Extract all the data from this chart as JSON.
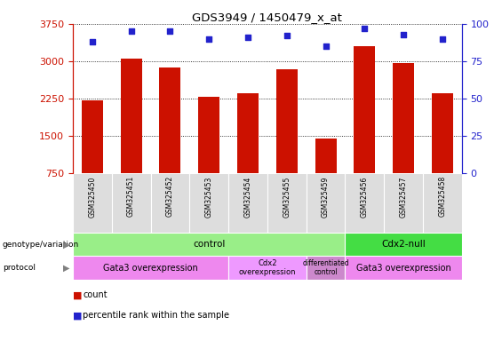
{
  "title": "GDS3949 / 1450479_x_at",
  "samples": [
    "GSM325450",
    "GSM325451",
    "GSM325452",
    "GSM325453",
    "GSM325454",
    "GSM325455",
    "GSM325459",
    "GSM325456",
    "GSM325457",
    "GSM325458"
  ],
  "counts": [
    2220,
    3060,
    2870,
    2290,
    2360,
    2840,
    1450,
    3310,
    2960,
    2360
  ],
  "percentile_ranks": [
    88,
    95,
    95,
    90,
    91,
    92,
    85,
    97,
    93,
    90
  ],
  "ylim_left": [
    750,
    3750
  ],
  "ylim_right": [
    0,
    100
  ],
  "yticks_left": [
    750,
    1500,
    2250,
    3000,
    3750
  ],
  "yticks_right": [
    0,
    25,
    50,
    75,
    100
  ],
  "bar_color": "#cc1100",
  "dot_color": "#2222cc",
  "bar_width": 0.55,
  "sample_box_color": "#dddddd",
  "genotype_control_color": "#99ee88",
  "genotype_cdx2null_color": "#44dd44",
  "genotype_control_label": "control",
  "genotype_cdx2null_label": "Cdx2-null",
  "genotype_control_range": [
    0,
    6
  ],
  "genotype_cdx2null_range": [
    7,
    9
  ],
  "protocol_boxes": [
    {
      "range": [
        0,
        3
      ],
      "label": "Gata3 overexpression",
      "color": "#ee88ee",
      "fontsize": 7
    },
    {
      "range": [
        4,
        5
      ],
      "label": "Cdx2\noverexpression",
      "color": "#ee99ff",
      "fontsize": 6
    },
    {
      "range": [
        6,
        6
      ],
      "label": "differentiated\ncontrol",
      "color": "#cc88cc",
      "fontsize": 5.5
    },
    {
      "range": [
        7,
        9
      ],
      "label": "Gata3 overexpression",
      "color": "#ee88ee",
      "fontsize": 7
    }
  ],
  "legend_items": [
    {
      "color": "#cc1100",
      "label": "count"
    },
    {
      "color": "#2222cc",
      "label": "percentile rank within the sample"
    }
  ],
  "left_axis_color": "#cc1100",
  "right_axis_color": "#2222cc"
}
